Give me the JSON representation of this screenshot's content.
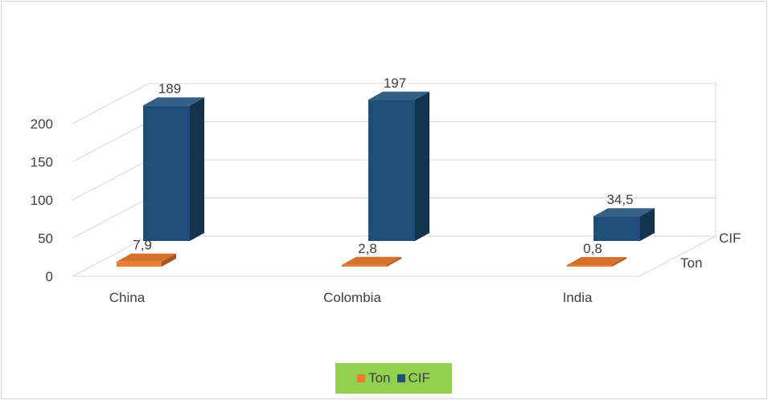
{
  "chart_data": {
    "type": "bar",
    "categories": [
      "China",
      "Colombia",
      "India"
    ],
    "series": [
      {
        "name": "Ton",
        "values": [
          7.9,
          2.8,
          0.8
        ],
        "labels": [
          "7,9",
          "2,8",
          "0,8"
        ]
      },
      {
        "name": "CIF",
        "values": [
          189,
          197,
          34.5
        ],
        "labels": [
          "189",
          "197",
          "34,5"
        ]
      }
    ],
    "title": "",
    "xlabel": "",
    "ylabel": "",
    "ylim": [
      0,
      200
    ],
    "yticks": [
      0,
      50,
      100,
      150,
      200
    ],
    "grid": true,
    "legend": "bottom"
  },
  "colors": {
    "ton": "#ED7D31",
    "cif": "#1F4E79",
    "legend_background": "#92D050",
    "gridline": "#D9D9D9"
  }
}
